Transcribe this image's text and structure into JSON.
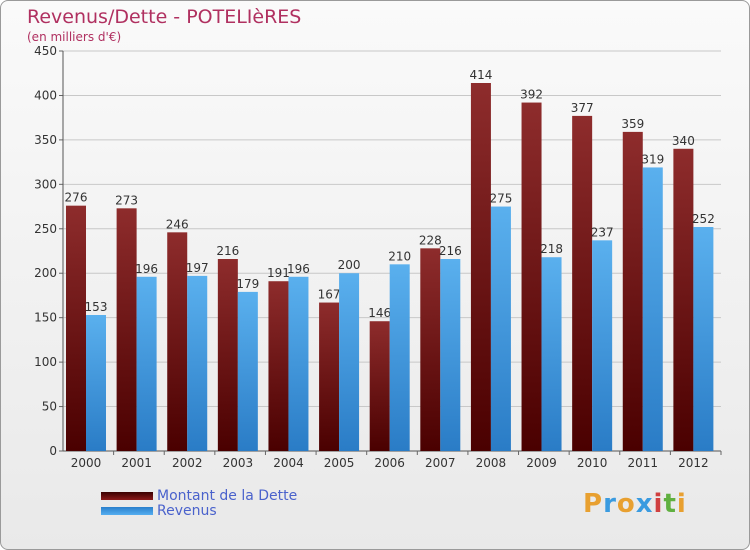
{
  "header": {
    "title": "Revenus/Dette - POTELIèRES",
    "subtitle": "(en milliers d'€)"
  },
  "chart_data": {
    "type": "bar",
    "categories": [
      "2000",
      "2001",
      "2002",
      "2003",
      "2004",
      "2005",
      "2006",
      "2007",
      "2008",
      "2009",
      "2010",
      "2011",
      "2012"
    ],
    "series": [
      {
        "name": "Montant de la Dette",
        "color": "#8b1a1a",
        "values": [
          276,
          273,
          246,
          216,
          191,
          167,
          146,
          228,
          414,
          392,
          377,
          359,
          340
        ]
      },
      {
        "name": "Revenus",
        "color": "#3f9fe8",
        "values": [
          153,
          196,
          197,
          179,
          196,
          200,
          210,
          216,
          275,
          218,
          237,
          319,
          252
        ]
      }
    ],
    "ylim": [
      0,
      450
    ],
    "yticks": [
      0,
      50,
      100,
      150,
      200,
      250,
      300,
      350,
      400,
      450
    ],
    "grid": true,
    "legend_position": "bottom-left"
  },
  "logo": {
    "letters": [
      "P",
      "r",
      "o",
      "x",
      "i",
      "t",
      "i"
    ],
    "colors": [
      "#e8a030",
      "#3a9be0",
      "#e8a030",
      "#3a9be0",
      "#d04040",
      "#60b040",
      "#e8a030"
    ]
  }
}
